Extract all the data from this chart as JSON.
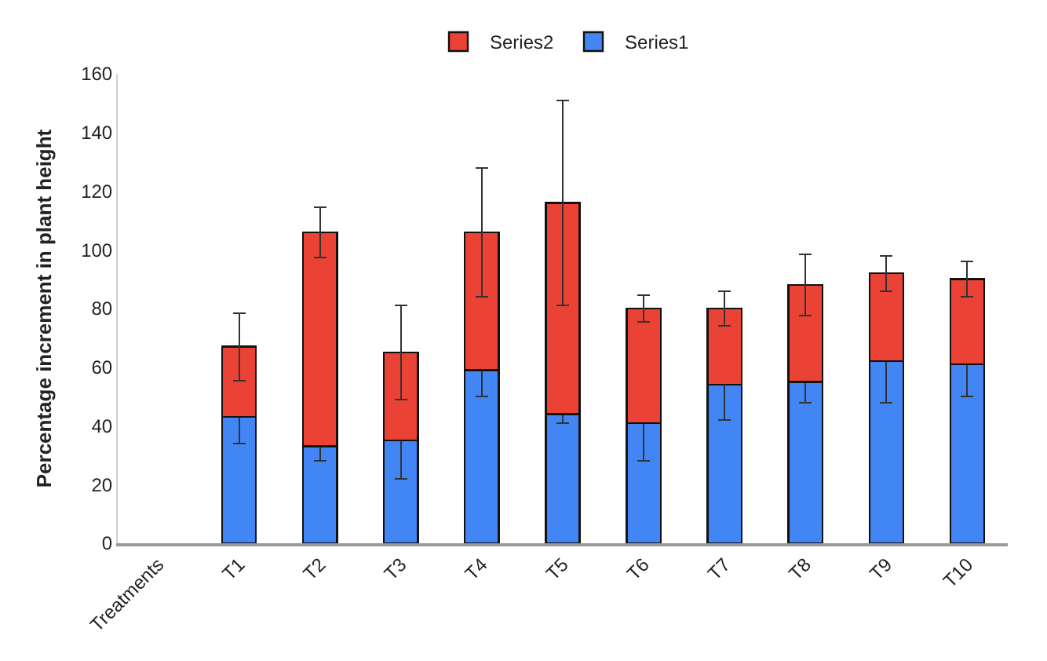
{
  "chart_data": {
    "type": "bar",
    "stacked": true,
    "ylabel": "Percentage increment in plant height",
    "categories": [
      "Treatments",
      "T1",
      "T2",
      "T3",
      "T4",
      "T5",
      "T6",
      "T7",
      "T8",
      "T9",
      "T10"
    ],
    "series": [
      {
        "name": "Series1",
        "color": "#4285f4",
        "values": [
          null,
          43,
          33,
          35,
          59,
          44,
          41,
          54,
          55,
          62,
          61
        ],
        "errors": [
          null,
          9,
          5,
          13,
          9,
          3,
          13,
          12,
          7,
          14,
          11
        ]
      },
      {
        "name": "Series2",
        "color": "#ea4335",
        "values": [
          null,
          24,
          73,
          30,
          47,
          72,
          39,
          26,
          33,
          30,
          29
        ],
        "errors": [
          null,
          11.5,
          8.5,
          16,
          22,
          35,
          4.5,
          6,
          10.5,
          6,
          6
        ]
      }
    ],
    "ylim": [
      0,
      160
    ],
    "yticks": [
      0,
      20,
      40,
      60,
      80,
      100,
      120,
      140,
      160
    ],
    "grid": false,
    "legend": "top"
  }
}
